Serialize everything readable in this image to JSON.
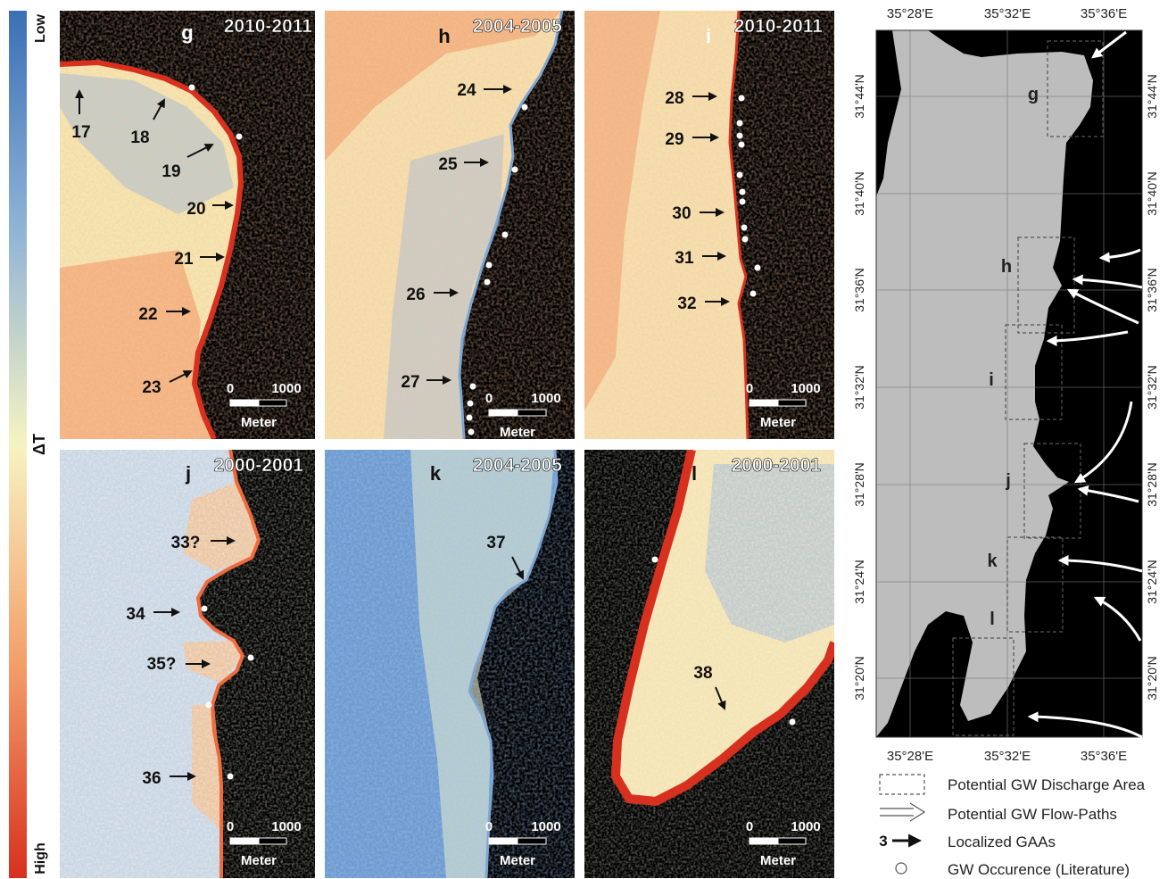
{
  "colorbar": {
    "low": "Low",
    "high": "High",
    "symbol": "ΔT",
    "colors": [
      "#3b6fb5",
      "#8fb3d6",
      "#f6f3c2",
      "#f4a06b",
      "#d7301f"
    ]
  },
  "panels": [
    {
      "id": "g",
      "letter": "g",
      "period": "2010-2011",
      "scale_start": "0",
      "scale_end": "1000",
      "unit": "Meter",
      "labels": [
        "17",
        "18",
        "19",
        "20",
        "21",
        "22",
        "23"
      ]
    },
    {
      "id": "h",
      "letter": "h",
      "period": "2004-2005",
      "scale_start": "0",
      "scale_end": "1000",
      "unit": "Meter",
      "labels": [
        "24",
        "25",
        "26",
        "27"
      ]
    },
    {
      "id": "i",
      "letter": "i",
      "period": "2010-2011",
      "scale_start": "0",
      "scale_end": "1000",
      "unit": "Meter",
      "labels": [
        "28",
        "29",
        "30",
        "31",
        "32"
      ]
    },
    {
      "id": "j",
      "letter": "j",
      "period": "2000-2001",
      "scale_start": "0",
      "scale_end": "1000",
      "unit": "Meter",
      "labels": [
        "33?",
        "34",
        "35?",
        "36"
      ]
    },
    {
      "id": "k",
      "letter": "k",
      "period": "2004-2005",
      "scale_start": "0",
      "scale_end": "1000",
      "unit": "Meter",
      "labels": [
        "37"
      ]
    },
    {
      "id": "l",
      "letter": "l",
      "period": "2000-2001",
      "scale_start": "0",
      "scale_end": "1000",
      "unit": "Meter",
      "labels": [
        "38"
      ]
    }
  ],
  "overview_map": {
    "lon_ticks": [
      "35°28'E",
      "35°32'E",
      "35°36'E"
    ],
    "lat_ticks": [
      "31°44'N",
      "31°40'N",
      "31°36'N",
      "31°32'N",
      "31°28'N",
      "31°24'N",
      "31°20'N"
    ],
    "area_labels": [
      "g",
      "h",
      "i",
      "j",
      "k",
      "l"
    ],
    "land_color": "#bdbdbd",
    "water_color": "#000000"
  },
  "legend": {
    "discharge_area": "Potential GW Discharge Area",
    "flow_paths": "Potential GW Flow-Paths",
    "gaas_number": "3",
    "gaas": "Localized GAAs",
    "occurrence": "GW Occurence (Literature)"
  }
}
